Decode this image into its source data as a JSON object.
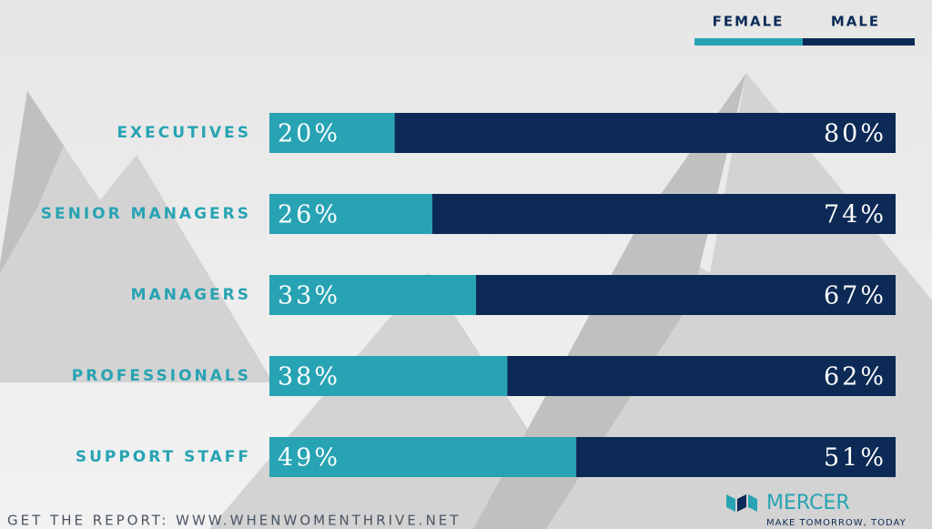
{
  "chart_data": {
    "type": "stacked-bar-horizontal",
    "categories": [
      "EXECUTIVES",
      "SENIOR MANAGERS",
      "MANAGERS",
      "PROFESSIONALS",
      "SUPPORT STAFF"
    ],
    "series": [
      {
        "name": "FEMALE",
        "color": "#27a3b3",
        "values": [
          20,
          26,
          33,
          38,
          49
        ],
        "value_labels": [
          "20%",
          "26%",
          "33%",
          "38%",
          "49%"
        ]
      },
      {
        "name": "MALE",
        "color": "#0c2a55",
        "values": [
          80,
          74,
          67,
          62,
          51
        ],
        "value_labels": [
          "80%",
          "74%",
          "67%",
          "62%",
          "51%"
        ]
      }
    ],
    "xlim": [
      0,
      100
    ]
  },
  "footer": {
    "link": "GET THE REPORT: WWW.WHENWOMENTHRIVE.NET",
    "brand": "MERCER",
    "tagline": "MAKE TOMORROW, TODAY"
  }
}
